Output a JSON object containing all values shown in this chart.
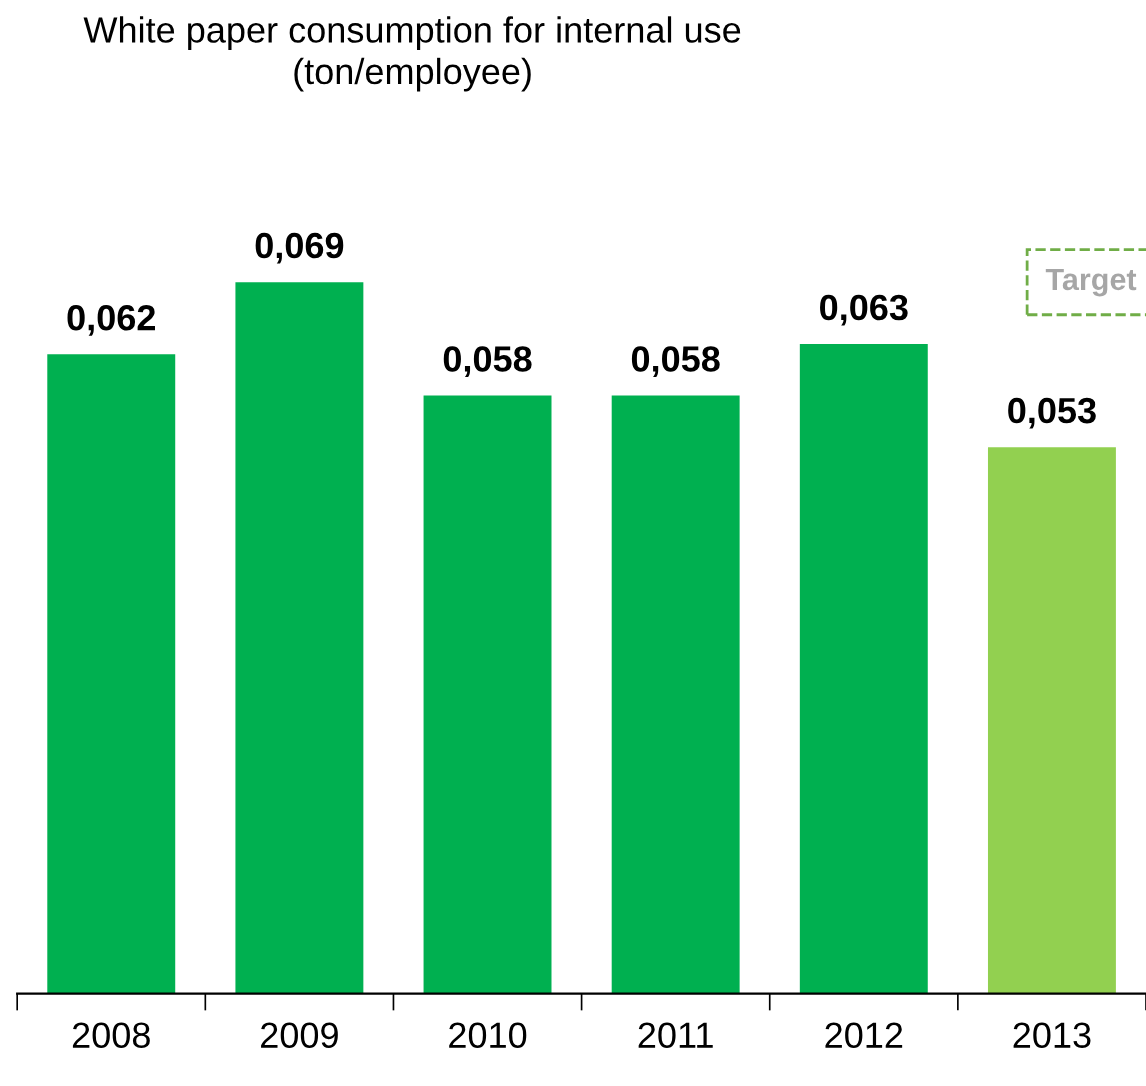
{
  "chart_data": {
    "type": "bar",
    "title": "White paper consumption for internal use\n(ton/employee)",
    "categories": [
      "2008",
      "2009",
      "2010",
      "2011",
      "2012",
      "2013"
    ],
    "values": [
      0.062,
      0.069,
      0.058,
      0.058,
      0.063,
      0.053
    ],
    "value_labels": [
      "0,062",
      "0,069",
      "0,058",
      "0,058",
      "0,063",
      "0,053"
    ],
    "colors": [
      "#00b050",
      "#00b050",
      "#00b050",
      "#00b050",
      "#00b050",
      "#92d050"
    ],
    "annotations": [
      "Target"
    ],
    "grid": false,
    "legend": false
  }
}
